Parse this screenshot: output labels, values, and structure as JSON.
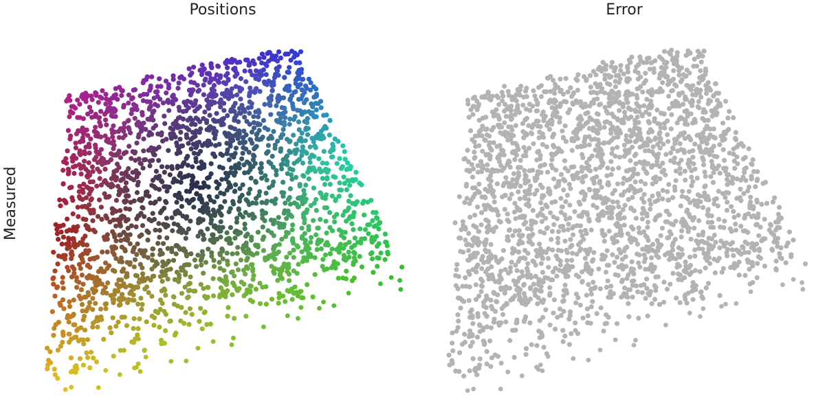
{
  "chart_data": [
    {
      "type": "scatter",
      "title": "Positions",
      "ylabel": "Measured",
      "xlabel": "",
      "grid": false,
      "legend": "none",
      "color_mode": "position-gradient",
      "corner_colors": {
        "top-left": "#b0208a",
        "top-right": "#3030d8",
        "mid-right": "#20d0a8",
        "bottom-right": "#30c030",
        "bottom-left": "#e8c020",
        "left-middle": "#a02020",
        "center": "#101840"
      },
      "point_count": 2500
    },
    {
      "type": "scatter",
      "title": "Error",
      "xlabel": "",
      "ylabel": "",
      "grid": false,
      "legend": "none",
      "color": "#b3b3b3",
      "point_count": 2500
    }
  ]
}
